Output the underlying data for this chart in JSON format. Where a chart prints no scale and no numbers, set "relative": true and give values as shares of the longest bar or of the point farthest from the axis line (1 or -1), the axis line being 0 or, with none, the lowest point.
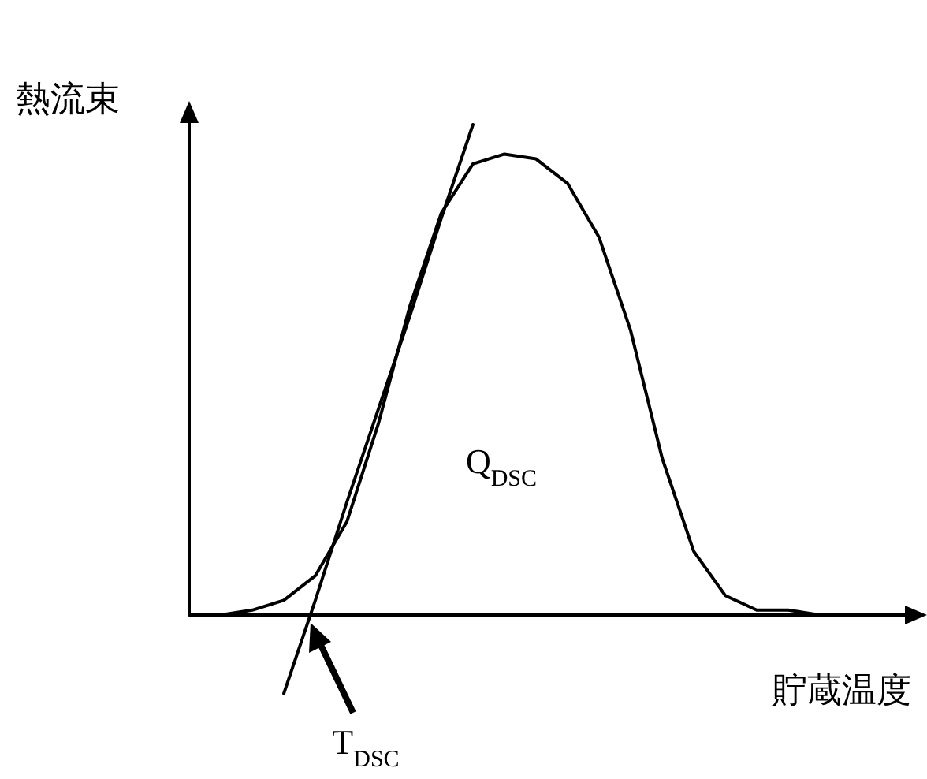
{
  "chart_data": {
    "type": "line",
    "relative": true,
    "xlabel": "貯蔵温度",
    "ylabel": "熱流束",
    "categories": [
      null,
      null,
      null,
      null,
      null,
      null,
      null,
      null,
      null,
      null,
      null,
      null,
      null,
      null,
      null,
      null,
      null,
      null,
      null,
      null,
      null,
      null,
      null
    ],
    "series": [
      {
        "color": "#000000",
        "values": [
          0,
          0,
          0.01,
          0.03,
          0.08,
          0.19,
          0.39,
          0.63,
          0.82,
          0.92,
          0.94,
          0.93,
          0.88,
          0.77,
          0.58,
          0.32,
          0.13,
          0.04,
          0.01,
          0.01,
          0,
          0,
          0
        ]
      },
      {
        "type": "line",
        "color": "#000000",
        "values": [
          null,
          null,
          null,
          -0.16,
          0.03,
          0.23,
          0.42,
          0.61,
          0.81,
          1.0,
          null,
          null,
          null,
          null,
          null,
          null,
          null,
          null,
          null,
          null,
          null,
          null,
          null
        ]
      }
    ],
    "annotations": [
      "Q$_{DSC}$",
      "T$_{DSC}$"
    ]
  }
}
